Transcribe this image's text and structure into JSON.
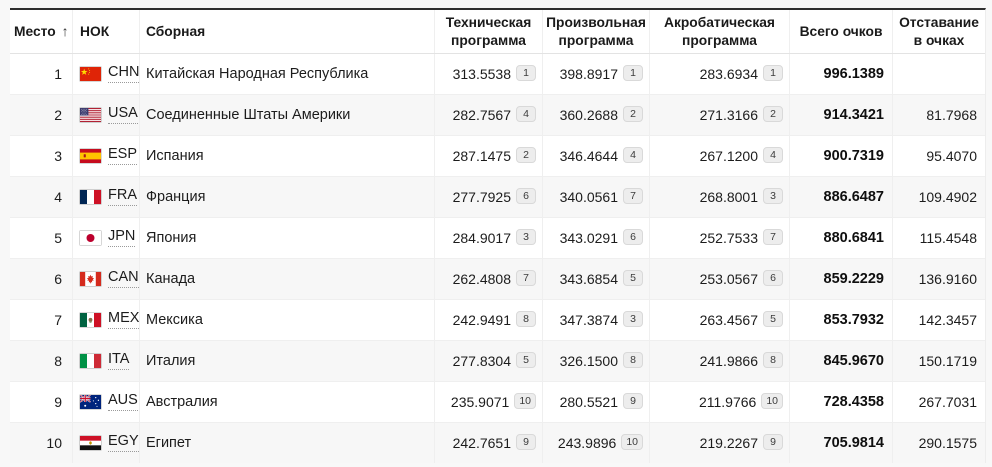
{
  "table": {
    "sort_icon": "↑",
    "columns": [
      {
        "key": "rank",
        "label": "Место"
      },
      {
        "key": "noc",
        "label": "НОК"
      },
      {
        "key": "team",
        "label": "Сборная"
      },
      {
        "key": "tech",
        "label": "Техническая программа"
      },
      {
        "key": "free",
        "label": "Произвольная программа"
      },
      {
        "key": "acro",
        "label": "Акробатическая программа"
      },
      {
        "key": "total",
        "label": "Всего очков"
      },
      {
        "key": "gap",
        "label": "Отставание в очках"
      }
    ],
    "rows": [
      {
        "rank": "1",
        "noc": "CHN",
        "team": "Китайская Народная Республика",
        "tech": "313.5538",
        "tech_rank": "1",
        "free": "398.8917",
        "free_rank": "1",
        "acro": "283.6934",
        "acro_rank": "1",
        "total": "996.1389",
        "gap": ""
      },
      {
        "rank": "2",
        "noc": "USA",
        "team": "Соединенные Штаты Америки",
        "tech": "282.7567",
        "tech_rank": "4",
        "free": "360.2688",
        "free_rank": "2",
        "acro": "271.3166",
        "acro_rank": "2",
        "total": "914.3421",
        "gap": "81.7968"
      },
      {
        "rank": "3",
        "noc": "ESP",
        "team": "Испания",
        "tech": "287.1475",
        "tech_rank": "2",
        "free": "346.4644",
        "free_rank": "4",
        "acro": "267.1200",
        "acro_rank": "4",
        "total": "900.7319",
        "gap": "95.4070"
      },
      {
        "rank": "4",
        "noc": "FRA",
        "team": "Франция",
        "tech": "277.7925",
        "tech_rank": "6",
        "free": "340.0561",
        "free_rank": "7",
        "acro": "268.8001",
        "acro_rank": "3",
        "total": "886.6487",
        "gap": "109.4902"
      },
      {
        "rank": "5",
        "noc": "JPN",
        "team": "Япония",
        "tech": "284.9017",
        "tech_rank": "3",
        "free": "343.0291",
        "free_rank": "6",
        "acro": "252.7533",
        "acro_rank": "7",
        "total": "880.6841",
        "gap": "115.4548"
      },
      {
        "rank": "6",
        "noc": "CAN",
        "team": "Канада",
        "tech": "262.4808",
        "tech_rank": "7",
        "free": "343.6854",
        "free_rank": "5",
        "acro": "253.0567",
        "acro_rank": "6",
        "total": "859.2229",
        "gap": "136.9160"
      },
      {
        "rank": "7",
        "noc": "MEX",
        "team": "Мексика",
        "tech": "242.9491",
        "tech_rank": "8",
        "free": "347.3874",
        "free_rank": "3",
        "acro": "263.4567",
        "acro_rank": "5",
        "total": "853.7932",
        "gap": "142.3457"
      },
      {
        "rank": "8",
        "noc": "ITA",
        "team": "Италия",
        "tech": "277.8304",
        "tech_rank": "5",
        "free": "326.1500",
        "free_rank": "8",
        "acro": "241.9866",
        "acro_rank": "8",
        "total": "845.9670",
        "gap": "150.1719"
      },
      {
        "rank": "9",
        "noc": "AUS",
        "team": "Австралия",
        "tech": "235.9071",
        "tech_rank": "10",
        "free": "280.5521",
        "free_rank": "9",
        "acro": "211.9766",
        "acro_rank": "10",
        "total": "728.4358",
        "gap": "267.7031"
      },
      {
        "rank": "10",
        "noc": "EGY",
        "team": "Египет",
        "tech": "242.7651",
        "tech_rank": "9",
        "free": "243.9896",
        "free_rank": "10",
        "acro": "219.2267",
        "acro_rank": "9",
        "total": "705.9814",
        "gap": "290.1575"
      }
    ]
  }
}
